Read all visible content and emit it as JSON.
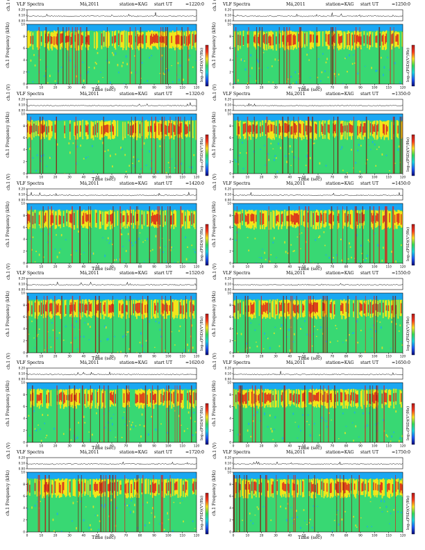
{
  "common": {
    "title_left": "VLF Spectra",
    "date": "Má,2011",
    "station": "station=KAG",
    "start_label": "start",
    "ut_label": "UT",
    "top_ylabel": "ch.1 (V)",
    "spec_ylabel_1": "ch.1",
    "spec_ylabel_2": "Frequency  (kHz)",
    "colorbar_label": "log₁₀(PSD)(V²/Hz)",
    "xlabel": "Time  (sec)"
  },
  "chart_data": [
    {
      "type": "heatmap",
      "start_ut": "=1220:0",
      "xlim": [
        0,
        120
      ],
      "ylim": [
        0,
        10
      ],
      "top_ylim": [
        0.0,
        0.2
      ]
    },
    {
      "type": "heatmap",
      "start_ut": "=1250:0",
      "xlim": [
        0,
        120
      ],
      "ylim": [
        0,
        10
      ],
      "top_ylim": [
        0.0,
        0.2
      ]
    },
    {
      "type": "heatmap",
      "start_ut": "=1320:0",
      "xlim": [
        0,
        120
      ],
      "ylim": [
        0,
        10
      ],
      "top_ylim": [
        0.0,
        0.2
      ]
    },
    {
      "type": "heatmap",
      "start_ut": "=1350:0",
      "xlim": [
        0,
        120
      ],
      "ylim": [
        0,
        10
      ],
      "top_ylim": [
        0.0,
        0.2
      ]
    },
    {
      "type": "heatmap",
      "start_ut": "=1420:0",
      "xlim": [
        0,
        120
      ],
      "ylim": [
        0,
        10
      ],
      "top_ylim": [
        0.0,
        0.2
      ]
    },
    {
      "type": "heatmap",
      "start_ut": "=1450:0",
      "xlim": [
        0,
        120
      ],
      "ylim": [
        0,
        10
      ],
      "top_ylim": [
        0.0,
        0.2
      ]
    },
    {
      "type": "heatmap",
      "start_ut": "=1520:0",
      "xlim": [
        0,
        120
      ],
      "ylim": [
        0,
        10
      ],
      "top_ylim": [
        0.0,
        0.2
      ]
    },
    {
      "type": "heatmap",
      "start_ut": "=1550:0",
      "xlim": [
        0,
        120
      ],
      "ylim": [
        0,
        10
      ],
      "top_ylim": [
        0.0,
        0.2
      ]
    },
    {
      "type": "heatmap",
      "start_ut": "=1620:0",
      "xlim": [
        0,
        120
      ],
      "ylim": [
        0,
        10
      ],
      "top_ylim": [
        0.0,
        0.2
      ]
    },
    {
      "type": "heatmap",
      "start_ut": "=1650:0",
      "xlim": [
        0,
        120
      ],
      "ylim": [
        0,
        10
      ],
      "top_ylim": [
        0.0,
        0.2
      ]
    },
    {
      "type": "heatmap",
      "start_ut": "=1720:0",
      "xlim": [
        0,
        120
      ],
      "ylim": [
        0,
        10
      ],
      "top_ylim": [
        0.0,
        0.2
      ]
    },
    {
      "type": "heatmap",
      "start_ut": "=1750:0",
      "xlim": [
        0,
        120
      ],
      "ylim": [
        0,
        10
      ],
      "top_ylim": [
        0.0,
        0.2
      ]
    }
  ],
  "x_ticks": [
    "0",
    "10",
    "20",
    "30",
    "40",
    "50",
    "60",
    "70",
    "80",
    "90",
    "100",
    "110",
    "120"
  ],
  "y_ticks": [
    "0",
    "2",
    "4",
    "6",
    "8",
    "10"
  ],
  "top_ticks": [
    "0.00",
    "0.10",
    "0.20"
  ],
  "colors": {
    "spectrum_low": "#1aa7f2",
    "spectrum_mid": "#38d873",
    "spectrum_high": "#f3e51b",
    "spectrum_peak": "#d8201c",
    "colorbar_stops": [
      "#b41a1a",
      "#ff3b1f",
      "#ffe620",
      "#35dd5a",
      "#1bd7e0",
      "#1e5cff",
      "#0a0a7a"
    ]
  }
}
